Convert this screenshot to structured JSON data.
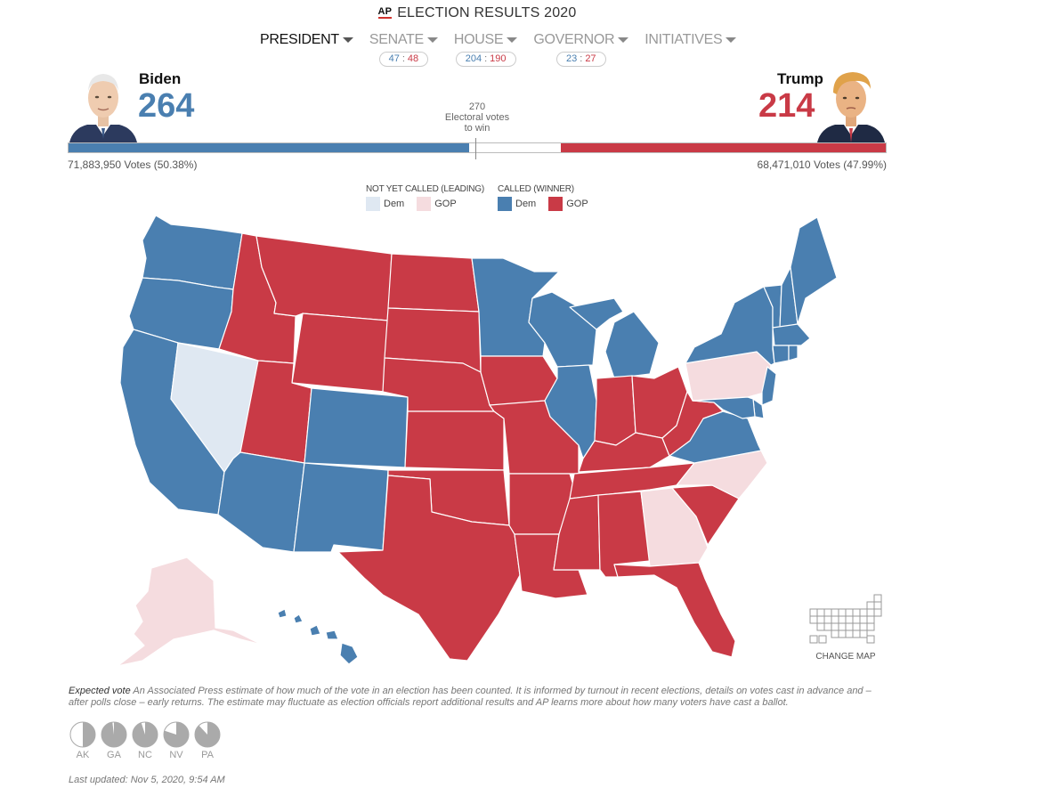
{
  "header": {
    "logo": "AP",
    "title": "ELECTION RESULTS 2020"
  },
  "tabs": [
    {
      "label": "PRESIDENT",
      "active": true
    },
    {
      "label": "SENATE",
      "dem": "47",
      "gop": "48"
    },
    {
      "label": "HOUSE",
      "dem": "204",
      "gop": "190"
    },
    {
      "label": "GOVERNOR",
      "dem": "23",
      "gop": "27"
    },
    {
      "label": "INITIATIVES"
    }
  ],
  "count_separator": ":",
  "candidates": {
    "dem": {
      "name": "Biden",
      "ev": "264",
      "votes": "71,883,950 Votes (50.38%)"
    },
    "gop": {
      "name": "Trump",
      "ev": "214",
      "votes": "68,471,010 Votes (47.99%)"
    }
  },
  "threshold": {
    "number": "270",
    "line1": "Electoral votes",
    "line2": "to win"
  },
  "ev_bar": {
    "total": 538,
    "dem": 264,
    "gop": 214,
    "to_win": 270
  },
  "legend": {
    "not_called": {
      "title": "NOT YET CALLED (LEADING)",
      "dem": "Dem",
      "gop": "GOP"
    },
    "called": {
      "title": "CALLED (WINNER)",
      "dem": "Dem",
      "gop": "GOP"
    }
  },
  "colors": {
    "dem_called": "#4a7fb0",
    "gop_called": "#c93a46",
    "dem_leading": "#dfe8f2",
    "gop_leading": "#f5dcdf"
  },
  "change_map": {
    "label": "CHANGE MAP",
    "icon": "grid-map-icon"
  },
  "expected_vote": {
    "term": "Expected vote",
    "text": "An Associated Press estimate of how much of the vote in an election has been counted. It is informed by turnout in recent elections, details on votes cast in advance and – after polls close – early returns. The estimate may fluctuate as election officials report additional results and AP learns more about how many voters have cast a ballot."
  },
  "expected_pies": [
    {
      "state": "AK",
      "fraction": 0.5
    },
    {
      "state": "GA",
      "fraction": 0.98
    },
    {
      "state": "NC",
      "fraction": 0.95
    },
    {
      "state": "NV",
      "fraction": 0.8
    },
    {
      "state": "PA",
      "fraction": 0.88
    }
  ],
  "last_updated": "Last updated: Nov 5, 2020, 9:54 AM",
  "states": {
    "WA": "dem_called",
    "OR": "dem_called",
    "CA": "dem_called",
    "NV": "dem_leading",
    "ID": "gop_called",
    "MT": "gop_called",
    "WY": "gop_called",
    "UT": "gop_called",
    "AZ": "dem_called",
    "CO": "dem_called",
    "NM": "dem_called",
    "ND": "gop_called",
    "SD": "gop_called",
    "NE": "gop_called",
    "KS": "gop_called",
    "OK": "gop_called",
    "TX": "gop_called",
    "MN": "dem_called",
    "IA": "gop_called",
    "MO": "gop_called",
    "AR": "gop_called",
    "LA": "gop_called",
    "WI": "dem_called",
    "IL": "dem_called",
    "MI": "dem_called",
    "IN": "gop_called",
    "OH": "gop_called",
    "KY": "gop_called",
    "TN": "gop_called",
    "MS": "gop_called",
    "AL": "gop_called",
    "GA": "gop_leading",
    "FL": "gop_called",
    "SC": "gop_called",
    "NC": "gop_leading",
    "VA": "dem_called",
    "WV": "gop_called",
    "PA": "gop_leading",
    "NY": "dem_called",
    "VT": "dem_called",
    "NH": "dem_called",
    "ME": "dem_called",
    "MA": "dem_called",
    "CT": "dem_called",
    "RI": "dem_called",
    "NJ": "dem_called",
    "DE": "dem_called",
    "MD": "dem_called",
    "AK": "gop_leading",
    "HI": "dem_called"
  }
}
